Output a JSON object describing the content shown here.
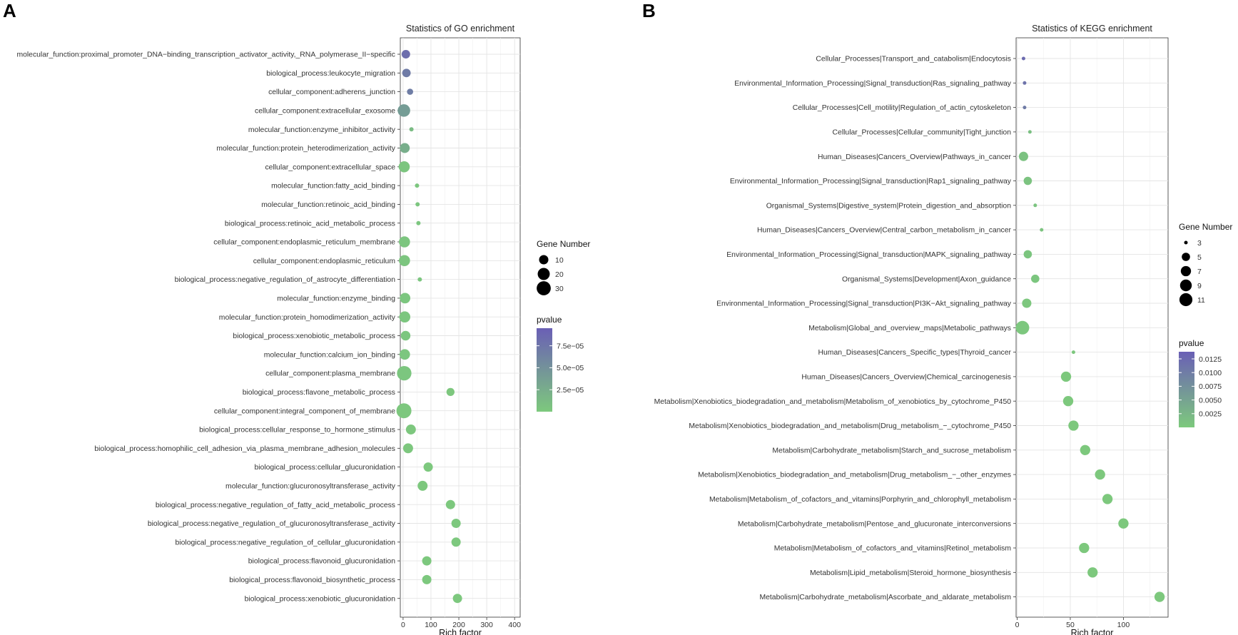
{
  "panels": {
    "A": {
      "label": "A"
    },
    "B": {
      "label": "B"
    }
  },
  "chart_data": [
    {
      "type": "scatter",
      "id": "go",
      "panel_label": "A",
      "title": "Statistics of GO enrichment",
      "xlabel": "Rich factor",
      "ylabel": "",
      "xlim": [
        -10,
        420
      ],
      "xticks": [
        0,
        100,
        200,
        300,
        400
      ],
      "grid": true,
      "categories": [
        "molecular_function:proximal_promoter_DNA−binding_transcription_activator_activity,_RNA_polymerase_II−specific",
        "biological_process:leukocyte_migration",
        "cellular_component:adherens_junction",
        "cellular_component:extracellular_exosome",
        "molecular_function:enzyme_inhibitor_activity",
        "molecular_function:protein_heterodimerization_activity",
        "cellular_component:extracellular_space",
        "molecular_function:fatty_acid_binding",
        "molecular_function:retinoic_acid_binding",
        "biological_process:retinoic_acid_metabolic_process",
        "cellular_component:endoplasmic_reticulum_membrane",
        "cellular_component:endoplasmic_reticulum",
        "biological_process:negative_regulation_of_astrocyte_differentiation",
        "molecular_function:enzyme_binding",
        "molecular_function:protein_homodimerization_activity",
        "biological_process:xenobiotic_metabolic_process",
        "molecular_function:calcium_ion_binding",
        "cellular_component:plasma_membrane",
        "biological_process:flavone_metabolic_process",
        "cellular_component:integral_component_of_membrane",
        "biological_process:cellular_response_to_hormone_stimulus",
        "biological_process:homophilic_cell_adhesion_via_plasma_membrane_adhesion_molecules",
        "biological_process:cellular_glucuronidation",
        "molecular_function:glucuronosyltransferase_activity",
        "biological_process:negative_regulation_of_fatty_acid_metabolic_process",
        "biological_process:negative_regulation_of_glucuronosyltransferase_activity",
        "biological_process:negative_regulation_of_cellular_glucuronidation",
        "biological_process:flavonoid_glucuronidation",
        "biological_process:flavonoid_biosynthetic_process",
        "biological_process:xenobiotic_glucuronidation"
      ],
      "rich_factor": [
        10,
        12,
        25,
        3,
        30,
        6,
        4,
        50,
        52,
        55,
        5,
        5,
        60,
        7,
        6,
        9,
        6,
        4,
        170,
        3,
        28,
        18,
        90,
        70,
        170,
        190,
        190,
        85,
        85,
        195
      ],
      "gene_number": [
        8,
        8,
        4,
        22,
        3,
        12,
        16,
        3,
        3,
        3,
        16,
        16,
        3,
        14,
        16,
        11,
        14,
        32,
        7,
        35,
        12,
        12,
        10,
        12,
        10,
        10,
        10,
        10,
        10,
        10
      ],
      "pvalue": [
        8.2e-05,
        7e-05,
        6.8e-05,
        4e-05,
        1.2e-05,
        2.4e-05,
        4e-06,
        3e-06,
        3e-06,
        3e-06,
        4e-06,
        4e-06,
        3e-06,
        3e-06,
        3e-06,
        3e-06,
        3e-06,
        3e-06,
        2e-06,
        2e-06,
        2e-06,
        2e-06,
        1e-06,
        1e-06,
        1e-06,
        1e-06,
        1e-06,
        1e-06,
        1e-06,
        1e-06
      ],
      "size_legend": {
        "title": "Gene Number",
        "values": [
          10,
          20,
          30
        ]
      },
      "color_legend": {
        "title": "pvalue",
        "min": 0,
        "max": 9.5e-05,
        "ticks": [
          7.5e-05,
          5e-05,
          2.5e-05
        ],
        "tick_labels": [
          "7.5e−05",
          "5.0e−05",
          "2.5e−05"
        ]
      },
      "color_low": "#7dc97d",
      "color_high": "#6a5fb5"
    },
    {
      "type": "scatter",
      "id": "kegg",
      "panel_label": "B",
      "title": "Statistics of KEGG enrichment",
      "xlabel": "Rich factor",
      "ylabel": "",
      "xlim": [
        -1,
        142
      ],
      "xticks": [
        0,
        50,
        100
      ],
      "grid": true,
      "categories": [
        "Cellular_Processes|Transport_and_catabolism|Endocytosis",
        "Environmental_Information_Processing|Signal_transduction|Ras_signaling_pathway",
        "Cellular_Processes|Cell_motility|Regulation_of_actin_cytoskeleton",
        "Cellular_Processes|Cellular_community|Tight_junction",
        "Human_Diseases|Cancers_Overview|Pathways_in_cancer",
        "Environmental_Information_Processing|Signal_transduction|Rap1_signaling_pathway",
        "Organismal_Systems|Digestive_system|Protein_digestion_and_absorption",
        "Human_Diseases|Cancers_Overview|Central_carbon_metabolism_in_cancer",
        "Environmental_Information_Processing|Signal_transduction|MAPK_signaling_pathway",
        "Organismal_Systems|Development|Axon_guidance",
        "Environmental_Information_Processing|Signal_transduction|PI3K−Akt_signaling_pathway",
        "Metabolism|Global_and_overview_maps|Metabolic_pathways",
        "Human_Diseases|Cancers_Specific_types|Thyroid_cancer",
        "Human_Diseases|Cancers_Overview|Chemical_carcinogenesis",
        "Metabolism|Xenobiotics_biodegradation_and_metabolism|Metabolism_of_xenobiotics_by_cytochrome_P450",
        "Metabolism|Xenobiotics_biodegradation_and_metabolism|Drug_metabolism_−_cytochrome_P450",
        "Metabolism|Carbohydrate_metabolism|Starch_and_sucrose_metabolism",
        "Metabolism|Xenobiotics_biodegradation_and_metabolism|Drug_metabolism_−_other_enzymes",
        "Metabolism|Metabolism_of_cofactors_and_vitamins|Porphyrin_and_chlorophyll_metabolism",
        "Metabolism|Carbohydrate_metabolism|Pentose_and_glucuronate_interconversions",
        "Metabolism|Metabolism_of_cofactors_and_vitamins|Retinol_metabolism",
        "Metabolism|Lipid_metabolism|Steroid_hormone_biosynthesis",
        "Metabolism|Carbohydrate_metabolism|Ascorbate_and_aldarate_metabolism"
      ],
      "rich_factor": [
        6,
        7,
        7,
        12,
        6,
        10,
        17,
        23,
        10,
        17,
        9,
        5,
        53,
        46,
        48,
        53,
        64,
        78,
        85,
        100,
        63,
        71,
        134
      ],
      "gene_number": [
        3,
        3,
        3,
        3,
        6,
        5,
        3,
        3,
        5,
        5,
        6,
        12,
        3,
        7,
        7,
        7,
        7,
        7,
        7,
        7,
        7,
        7,
        7
      ],
      "pvalue": [
        0.0122,
        0.0112,
        0.0102,
        0.0012,
        0.0009,
        0.0008,
        0.0007,
        0.0006,
        0.0005,
        0.0004,
        0.0003,
        0.0002,
        0.0002,
        0.0001,
        0.0001,
        0.0001,
        0.0001,
        0.0001,
        0.0001,
        0.0001,
        0.0001,
        0.0001,
        0.0001
      ],
      "size_legend": {
        "title": "Gene Number",
        "values": [
          3,
          5,
          7,
          9,
          11
        ]
      },
      "color_legend": {
        "title": "pvalue",
        "min": 0,
        "max": 0.0138,
        "ticks": [
          0.0125,
          0.01,
          0.0075,
          0.005,
          0.0025
        ],
        "tick_labels": [
          "0.0125",
          "0.0100",
          "0.0075",
          "0.0050",
          "0.0025"
        ]
      },
      "color_low": "#7dc97d",
      "color_high": "#6a5fb5"
    }
  ]
}
